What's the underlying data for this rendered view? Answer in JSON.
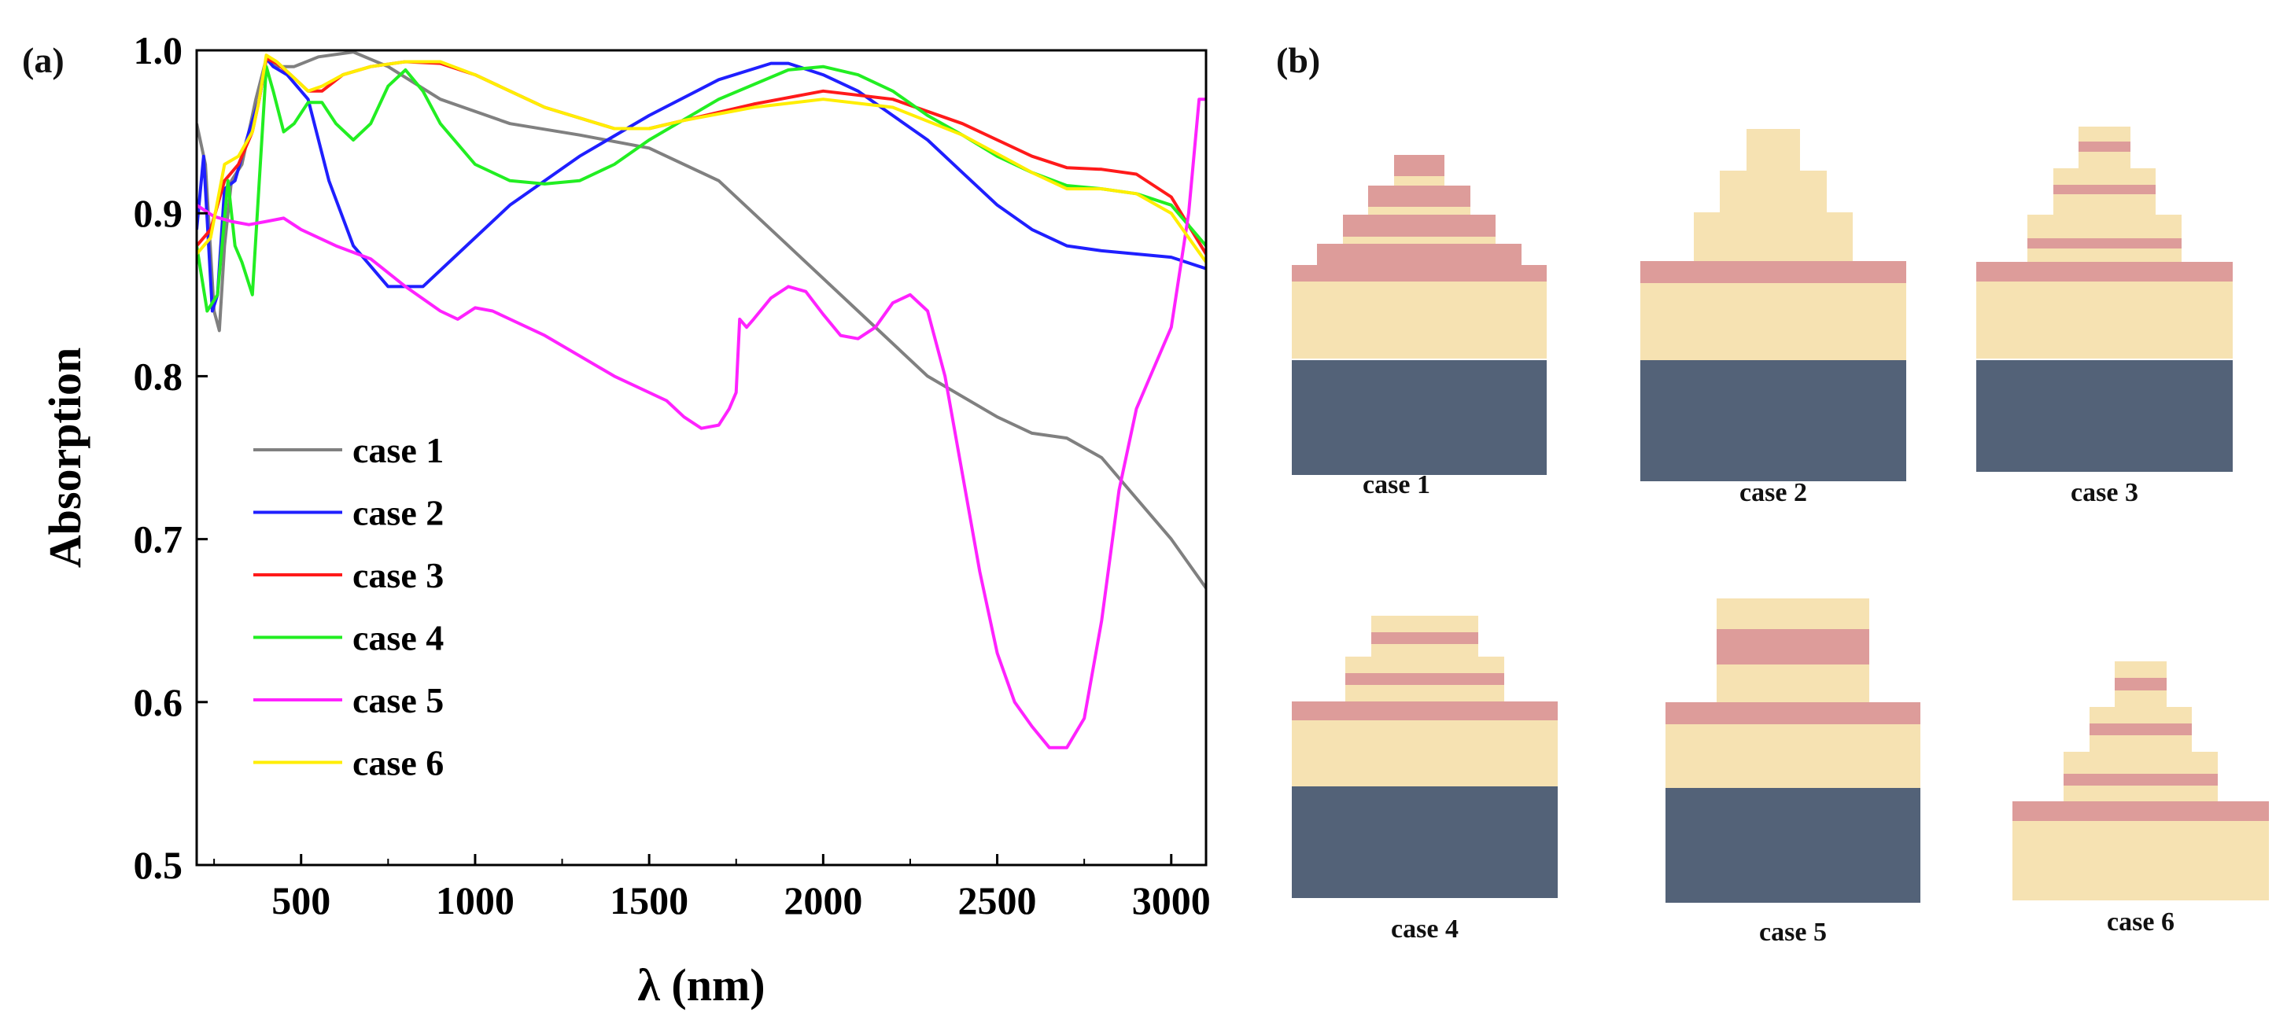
{
  "panel_labels": {
    "a": "(a)",
    "b": "(b)"
  },
  "colors": {
    "case1": "#808080",
    "case2": "#1f1fff",
    "case3": "#ff1a1a",
    "case4": "#22ee22",
    "case5": "#ff22ff",
    "case6": "#ffee00",
    "light_layer": "#f6e2b2",
    "pink_layer": "#dd9c9a",
    "substrate": "#536278"
  },
  "chart_data": {
    "type": "line",
    "title": "",
    "xlabel": "λ (nm)",
    "ylabel": "Absorption",
    "xlim": [
      200,
      3100
    ],
    "ylim": [
      0.5,
      1.0
    ],
    "xticks": [
      500,
      1000,
      1500,
      2000,
      2500,
      3000
    ],
    "yticks": [
      0.5,
      0.6,
      0.7,
      0.8,
      0.9,
      1.0
    ],
    "xtick_labels": [
      "500",
      "1000",
      "1500",
      "2000",
      "2500",
      "3000"
    ],
    "ytick_labels": [
      "0.5",
      "0.6",
      "0.7",
      "0.8",
      "0.9",
      "1.0"
    ],
    "legend_position": "lower-left",
    "series": [
      {
        "name": "case 1",
        "color": "#808080",
        "x": [
          200,
          225,
          250,
          265,
          280,
          300,
          330,
          370,
          400,
          430,
          480,
          550,
          650,
          750,
          900,
          1100,
          1300,
          1500,
          1700,
          1900,
          2100,
          2300,
          2500,
          2600,
          2700,
          2800,
          2900,
          3000,
          3100
        ],
        "y": [
          0.955,
          0.93,
          0.84,
          0.828,
          0.88,
          0.92,
          0.93,
          0.97,
          0.995,
          0.99,
          0.99,
          0.996,
          0.999,
          0.99,
          0.97,
          0.955,
          0.948,
          0.94,
          0.92,
          0.88,
          0.84,
          0.8,
          0.775,
          0.765,
          0.762,
          0.75,
          0.725,
          0.7,
          0.67
        ]
      },
      {
        "name": "case 2",
        "color": "#1f1fff",
        "x": [
          200,
          220,
          245,
          260,
          280,
          310,
          350,
          380,
          400,
          420,
          460,
          520,
          580,
          650,
          750,
          850,
          950,
          1100,
          1300,
          1500,
          1700,
          1850,
          1900,
          2000,
          2100,
          2200,
          2300,
          2400,
          2500,
          2600,
          2700,
          2800,
          2900,
          3000,
          3100
        ],
        "y": [
          0.89,
          0.935,
          0.84,
          0.85,
          0.915,
          0.92,
          0.95,
          0.97,
          0.995,
          0.99,
          0.985,
          0.97,
          0.92,
          0.88,
          0.855,
          0.855,
          0.875,
          0.905,
          0.935,
          0.96,
          0.982,
          0.992,
          0.992,
          0.985,
          0.975,
          0.96,
          0.945,
          0.925,
          0.905,
          0.89,
          0.88,
          0.877,
          0.875,
          0.873,
          0.866
        ]
      },
      {
        "name": "case 3",
        "color": "#ff1a1a",
        "x": [
          200,
          240,
          280,
          320,
          360,
          380,
          400,
          430,
          470,
          520,
          560,
          620,
          700,
          800,
          900,
          1000,
          1200,
          1400,
          1500,
          1600,
          1800,
          2000,
          2200,
          2400,
          2600,
          2700,
          2800,
          2900,
          3000,
          3100
        ],
        "y": [
          0.88,
          0.89,
          0.92,
          0.93,
          0.95,
          0.97,
          0.995,
          0.992,
          0.985,
          0.975,
          0.975,
          0.985,
          0.99,
          0.993,
          0.992,
          0.985,
          0.965,
          0.952,
          0.952,
          0.957,
          0.967,
          0.975,
          0.97,
          0.955,
          0.935,
          0.928,
          0.927,
          0.924,
          0.91,
          0.875
        ]
      },
      {
        "name": "case 4",
        "color": "#22ee22",
        "x": [
          200,
          230,
          260,
          290,
          310,
          330,
          360,
          380,
          400,
          420,
          450,
          480,
          520,
          560,
          600,
          650,
          700,
          750,
          800,
          850,
          900,
          1000,
          1100,
          1200,
          1300,
          1400,
          1500,
          1700,
          1900,
          2000,
          2100,
          2200,
          2300,
          2400,
          2500,
          2600,
          2700,
          2800,
          2900,
          3000,
          3100
        ],
        "y": [
          0.88,
          0.84,
          0.85,
          0.92,
          0.88,
          0.87,
          0.85,
          0.92,
          0.99,
          0.975,
          0.95,
          0.955,
          0.968,
          0.968,
          0.955,
          0.945,
          0.955,
          0.978,
          0.988,
          0.975,
          0.955,
          0.93,
          0.92,
          0.918,
          0.92,
          0.93,
          0.945,
          0.97,
          0.988,
          0.99,
          0.985,
          0.975,
          0.96,
          0.948,
          0.935,
          0.925,
          0.917,
          0.915,
          0.912,
          0.905,
          0.88
        ]
      },
      {
        "name": "case 5",
        "color": "#ff22ff",
        "x": [
          200,
          250,
          300,
          350,
          400,
          450,
          500,
          600,
          700,
          800,
          900,
          950,
          1000,
          1050,
          1200,
          1400,
          1550,
          1600,
          1650,
          1700,
          1730,
          1750,
          1760,
          1780,
          1800,
          1850,
          1900,
          1950,
          2000,
          2050,
          2100,
          2150,
          2200,
          2250,
          2300,
          2350,
          2400,
          2450,
          2500,
          2550,
          2600,
          2650,
          2700,
          2750,
          2800,
          2850,
          2900,
          2950,
          3000,
          3050,
          3080,
          3100
        ],
        "y": [
          0.905,
          0.898,
          0.895,
          0.893,
          0.895,
          0.897,
          0.89,
          0.88,
          0.872,
          0.855,
          0.84,
          0.835,
          0.842,
          0.84,
          0.825,
          0.8,
          0.785,
          0.775,
          0.768,
          0.77,
          0.78,
          0.79,
          0.835,
          0.83,
          0.835,
          0.848,
          0.855,
          0.852,
          0.838,
          0.825,
          0.823,
          0.83,
          0.845,
          0.85,
          0.84,
          0.8,
          0.74,
          0.68,
          0.63,
          0.6,
          0.585,
          0.572,
          0.572,
          0.59,
          0.65,
          0.73,
          0.78,
          0.805,
          0.83,
          0.9,
          0.97,
          0.97
        ]
      },
      {
        "name": "case 6",
        "color": "#ffee00",
        "x": [
          200,
          240,
          280,
          320,
          360,
          380,
          400,
          430,
          470,
          520,
          560,
          620,
          700,
          800,
          900,
          1000,
          1200,
          1400,
          1500,
          1600,
          1800,
          2000,
          2200,
          2400,
          2600,
          2700,
          2800,
          2900,
          3000,
          3100
        ],
        "y": [
          0.875,
          0.885,
          0.93,
          0.935,
          0.95,
          0.97,
          0.997,
          0.993,
          0.985,
          0.975,
          0.978,
          0.985,
          0.99,
          0.993,
          0.993,
          0.985,
          0.965,
          0.952,
          0.952,
          0.957,
          0.965,
          0.97,
          0.965,
          0.948,
          0.925,
          0.915,
          0.915,
          0.912,
          0.9,
          0.87
        ]
      }
    ]
  },
  "structures": [
    {
      "caption": "case 1",
      "substrate": true,
      "layers": [
        {
          "material": "pink",
          "widthRatio": 0.2,
          "heightRatio": 0.95
        },
        {
          "material": "light",
          "widthRatio": 0.2,
          "heightRatio": 0.45
        },
        {
          "material": "pink",
          "widthRatio": 0.4,
          "heightRatio": 0.95
        },
        {
          "material": "light",
          "widthRatio": 0.4,
          "heightRatio": 0.35
        },
        {
          "material": "pink",
          "widthRatio": 0.6,
          "heightRatio": 1.0
        },
        {
          "material": "light",
          "widthRatio": 0.6,
          "heightRatio": 0.35
        },
        {
          "material": "pink",
          "widthRatio": 0.8,
          "heightRatio": 0.95
        },
        {
          "material": "pink",
          "widthRatio": 1.0,
          "heightRatio": 0.75
        },
        {
          "material": "light",
          "widthRatio": 1.0,
          "heightRatio": 3.5
        }
      ]
    },
    {
      "caption": "case 2",
      "substrate": true,
      "layers": [
        {
          "material": "light",
          "widthRatio": 0.2,
          "heightRatio": 1.9
        },
        {
          "material": "light",
          "widthRatio": 0.4,
          "heightRatio": 1.9
        },
        {
          "material": "light",
          "widthRatio": 0.6,
          "heightRatio": 2.2
        },
        {
          "material": "pink",
          "widthRatio": 1.0,
          "heightRatio": 1.0
        },
        {
          "material": "light",
          "widthRatio": 1.0,
          "heightRatio": 3.5
        }
      ]
    },
    {
      "caption": "case 3",
      "substrate": true,
      "layers": [
        {
          "material": "light",
          "widthRatio": 0.2,
          "heightRatio": 0.7
        },
        {
          "material": "pink",
          "widthRatio": 0.2,
          "heightRatio": 0.45
        },
        {
          "material": "light",
          "widthRatio": 0.2,
          "heightRatio": 0.75
        },
        {
          "material": "light",
          "widthRatio": 0.4,
          "heightRatio": 0.75
        },
        {
          "material": "pink",
          "widthRatio": 0.4,
          "heightRatio": 0.45
        },
        {
          "material": "light",
          "widthRatio": 0.4,
          "heightRatio": 0.9
        },
        {
          "material": "light",
          "widthRatio": 0.6,
          "heightRatio": 1.1
        },
        {
          "material": "pink",
          "widthRatio": 0.6,
          "heightRatio": 0.45
        },
        {
          "material": "light",
          "widthRatio": 0.6,
          "heightRatio": 0.6
        },
        {
          "material": "pink",
          "widthRatio": 1.0,
          "heightRatio": 0.9
        },
        {
          "material": "light",
          "widthRatio": 1.0,
          "heightRatio": 3.5
        }
      ]
    },
    {
      "caption": "case 4",
      "substrate": true,
      "layers": [
        {
          "material": "light",
          "widthRatio": 0.4,
          "heightRatio": 0.75
        },
        {
          "material": "pink",
          "widthRatio": 0.4,
          "heightRatio": 0.55
        },
        {
          "material": "light",
          "widthRatio": 0.4,
          "heightRatio": 0.55
        },
        {
          "material": "light",
          "widthRatio": 0.6,
          "heightRatio": 0.75
        },
        {
          "material": "pink",
          "widthRatio": 0.6,
          "heightRatio": 0.55
        },
        {
          "material": "light",
          "widthRatio": 0.6,
          "heightRatio": 0.75
        },
        {
          "material": "pink",
          "widthRatio": 1.0,
          "heightRatio": 0.85
        },
        {
          "material": "light",
          "widthRatio": 1.0,
          "heightRatio": 3.0
        }
      ]
    },
    {
      "caption": "case 5",
      "substrate": true,
      "layers": [
        {
          "material": "light",
          "widthRatio": 0.6,
          "heightRatio": 1.4
        },
        {
          "material": "pink",
          "widthRatio": 0.6,
          "heightRatio": 1.6
        },
        {
          "material": "light",
          "widthRatio": 0.6,
          "heightRatio": 1.7
        },
        {
          "material": "pink",
          "widthRatio": 1.0,
          "heightRatio": 1.0
        },
        {
          "material": "light",
          "widthRatio": 1.0,
          "heightRatio": 2.9
        }
      ]
    },
    {
      "caption": "case 6",
      "substrate": false,
      "layers": [
        {
          "material": "light",
          "widthRatio": 0.2,
          "heightRatio": 0.75
        },
        {
          "material": "pink",
          "widthRatio": 0.2,
          "heightRatio": 0.55
        },
        {
          "material": "light",
          "widthRatio": 0.2,
          "heightRatio": 0.75
        },
        {
          "material": "light",
          "widthRatio": 0.4,
          "heightRatio": 0.75
        },
        {
          "material": "pink",
          "widthRatio": 0.4,
          "heightRatio": 0.55
        },
        {
          "material": "light",
          "widthRatio": 0.4,
          "heightRatio": 0.75
        },
        {
          "material": "light",
          "widthRatio": 0.6,
          "heightRatio": 1.0
        },
        {
          "material": "pink",
          "widthRatio": 0.6,
          "heightRatio": 0.55
        },
        {
          "material": "light",
          "widthRatio": 0.6,
          "heightRatio": 0.7
        },
        {
          "material": "pink",
          "widthRatio": 1.0,
          "heightRatio": 0.9
        },
        {
          "material": "light",
          "widthRatio": 1.0,
          "heightRatio": 3.6
        }
      ]
    }
  ]
}
